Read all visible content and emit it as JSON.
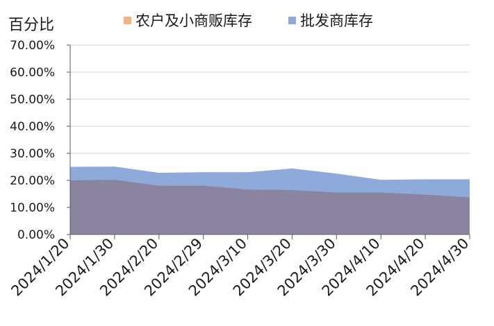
{
  "chart_data": {
    "type": "area",
    "stacked": false,
    "ylabel": "百分比",
    "xlabel": "",
    "title": "",
    "ylim": [
      0,
      0.7
    ],
    "y_tick_values": [
      0,
      0.1,
      0.2,
      0.3,
      0.4,
      0.5,
      0.6,
      0.7
    ],
    "y_tick_labels": [
      "0.00%",
      "10.00%",
      "20.00%",
      "30.00%",
      "40.00%",
      "50.00%",
      "60.00%",
      "70.00%"
    ],
    "categories": [
      "2024/1/20",
      "2024/1/30",
      "2024/2/20",
      "2024/2/29",
      "2024/3/10",
      "2024/3/20",
      "2024/3/30",
      "2024/4/10",
      "2024/4/20",
      "2024/4/30"
    ],
    "series": [
      {
        "name": "农户及小商贩库存",
        "color": "#f4b183",
        "values": [
          0.2,
          0.202,
          0.18,
          0.18,
          0.166,
          0.164,
          0.155,
          0.155,
          0.147,
          0.137
        ]
      },
      {
        "name": "批发商库存",
        "color": "#8eaadb",
        "values": [
          0.25,
          0.251,
          0.228,
          0.23,
          0.23,
          0.244,
          0.225,
          0.202,
          0.204,
          0.204
        ]
      }
    ],
    "grid": "horizontal",
    "legend_position": "top"
  }
}
